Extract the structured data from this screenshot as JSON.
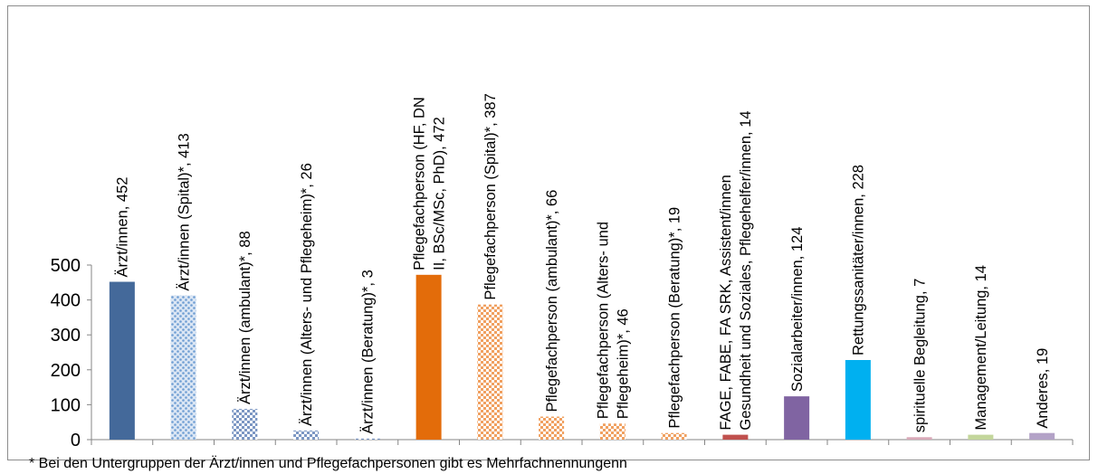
{
  "chart_data": {
    "type": "bar",
    "categories": [
      "Ärzt/innen",
      "Ärzt/innen (Spital)*",
      "Ärzt/innen (ambulant)*",
      "Ärzt/innen (Alters- und Pflegeheim)*",
      "Ärzt/innen (Beratung)*",
      "Pflegefachperson (HF, DN II, BSc/MSc, PhD)",
      "Pflegefachperson (Spital)*",
      "Pflegefachperson (ambulant)*",
      "Pflegefachperson (Alters- und Pflegeheim)*",
      "Pflegefachperson (Beratung)*",
      "FAGE, FABE, FA SRK, Assistent/innen Gesundheit und Soziales, Pflegehelfer/innen",
      "Sozialarbeiter/innen",
      "Rettungssanitäter/innen",
      "spirituelle Begleitung",
      "Management/Leitung",
      "Anderes"
    ],
    "values": [
      452,
      413,
      88,
      26,
      3,
      472,
      387,
      66,
      46,
      19,
      14,
      124,
      228,
      7,
      14,
      19
    ],
    "data_labels": [
      [
        "Ärzt/innen, 452"
      ],
      [
        "Ärzt/innen (Spital)*, 413"
      ],
      [
        "Ärzt/innen (ambulant)*, 88"
      ],
      [
        "Ärzt/innen (Alters- und Pflegeheim)*, 26"
      ],
      [
        "Ärzt/innen (Beratung)*, 3"
      ],
      [
        "Pflegefachperson (HF, DN",
        "II, BSc/MSc, PhD), 472"
      ],
      [
        "Pflegefachperson (Spital)*, 387"
      ],
      [
        "Pflegefachperson (ambulant)*, 66"
      ],
      [
        "Pflegefachperson (Alters- und",
        "Pflegeheim)*, 46"
      ],
      [
        "Pflegefachperson (Beratung)*, 19"
      ],
      [
        "FAGE, FABE, FA SRK, Assistent/innen",
        "Gesundheit und Soziales, Pflegehelfer/innen, 14"
      ],
      [
        "Sozialarbeiter/innen, 124"
      ],
      [
        "Rettungssanitäter/innen, 228"
      ],
      [
        "spirituelle Begleitung, 7"
      ],
      [
        "Management/Leitung, 14"
      ],
      [
        "Anderes, 19"
      ]
    ],
    "colors": [
      "#44699a",
      "#6f9ed3",
      "#7b96c3",
      "#7b96c3",
      "#7b96c3",
      "#e36c0a",
      "#f0a060",
      "#f0a060",
      "#f0a060",
      "#f0a060",
      "#c0504d",
      "#8064a2",
      "#00b0f0",
      "#d8a9b8",
      "#c3d69b",
      "#b3a2c7"
    ],
    "patterns": [
      "solid",
      "dots-light",
      "checker",
      "checker",
      "checker",
      "solid",
      "checker",
      "checker",
      "checker",
      "checker",
      "solid",
      "solid",
      "solid",
      "solid",
      "solid",
      "solid"
    ],
    "ylim": [
      0,
      500
    ],
    "yticks": [
      0,
      100,
      200,
      300,
      400,
      500
    ],
    "xlabel": "",
    "ylabel": "",
    "grid": false,
    "legend": "none"
  },
  "footnote": "* Bei den Untergruppen der Ärzt/innen und Pflegefachpersonen gibt es Mehrfachnennungenn"
}
